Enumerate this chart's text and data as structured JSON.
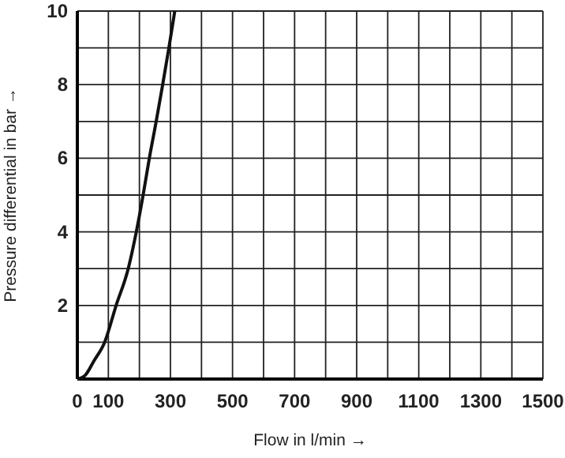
{
  "chart_data": {
    "type": "line",
    "xlabel": "Flow in l/min →",
    "ylabel": "Pressure differential in bar →",
    "xlim": [
      0,
      1500
    ],
    "ylim": [
      0,
      10
    ],
    "xticks": [
      0,
      {
        "value": 100,
        "label": "100"
      },
      {
        "value": 200,
        "label": null
      },
      300,
      {
        "value": 400,
        "label": null
      },
      500,
      {
        "value": 600,
        "label": null
      },
      700,
      {
        "value": 800,
        "label": null
      },
      900,
      {
        "value": 1000,
        "label": null
      },
      1100,
      {
        "value": 1200,
        "label": null
      },
      1300,
      {
        "value": 1400,
        "label": null
      },
      1500
    ],
    "yticks": [
      {
        "value": 0,
        "label": null
      },
      {
        "value": 1,
        "label": null
      },
      2,
      {
        "value": 3,
        "label": null
      },
      4,
      {
        "value": 5,
        "label": null
      },
      6,
      {
        "value": 7,
        "label": null
      },
      8,
      {
        "value": 9,
        "label": null
      },
      10
    ],
    "grid": true,
    "marker": "none",
    "line_style": "solid",
    "series": [
      {
        "color": "#111111",
        "x": [
          0,
          25,
          54,
          88,
          125,
          164,
          190,
          212,
          232,
          254,
          275,
          295,
          314
        ],
        "values": [
          0,
          0.1,
          0.5,
          1,
          2,
          3,
          4,
          5,
          6,
          7,
          8,
          9,
          10
        ]
      }
    ]
  }
}
